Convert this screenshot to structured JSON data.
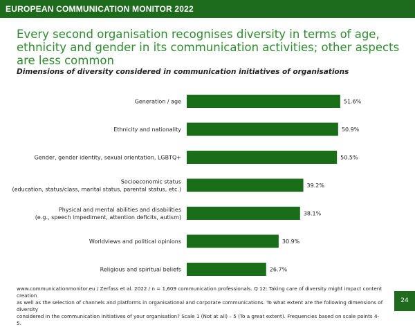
{
  "header": {
    "title": "EUROPEAN COMMUNICATION MONITOR 2022"
  },
  "headline": "Every second organisation recognises diversity in terms of age, ethnicity and gender in its communication activities; other aspects are less common",
  "colors": {
    "brand_green": "#1e6b1e",
    "headline_green": "#2e8b2e",
    "bar_green": "#1a6e1a"
  },
  "chart_data": {
    "type": "bar",
    "orientation": "horizontal",
    "title": "Dimensions of diversity considered in communication initiatives of organisations",
    "categories": [
      [
        "Generation / age"
      ],
      [
        "Ethnicity and nationality"
      ],
      [
        "Gender, gender identity, sexual orientation, LGBTQ+"
      ],
      [
        "Socioeconomic status",
        "(education, status/class, marital status, parental status, etc.)"
      ],
      [
        "Physical and mental abilities and disabilities",
        "(e.g., speech impediment, attention deficits, autism)"
      ],
      [
        "Worldviews and political opinions"
      ],
      [
        "Religious and spiritual beliefs"
      ]
    ],
    "values": [
      51.6,
      50.9,
      50.5,
      39.2,
      38.1,
      30.9,
      26.7
    ],
    "value_labels": [
      "51.6%",
      "50.9%",
      "50.5%",
      "39.2%",
      "38.1%",
      "30.9%",
      "26.7%"
    ],
    "xlim": [
      0,
      100
    ],
    "grid": false,
    "legend": "none"
  },
  "footnote": [
    "www.communicationmonitor.eu / Zerfass et al. 2022 / n = 1,609 communication professionals. Q 12: Taking care of diversity might impact content creation",
    "as well as the selection of channels and platforms in organisational and corporate communications. To what extent are the following dimensions of diversity",
    "considered in the communication initiatives of your organisation? Scale 1 (Not at all) – 5 (To a great extent). Frequencies based on scale points 4-5."
  ],
  "page_number": "24"
}
